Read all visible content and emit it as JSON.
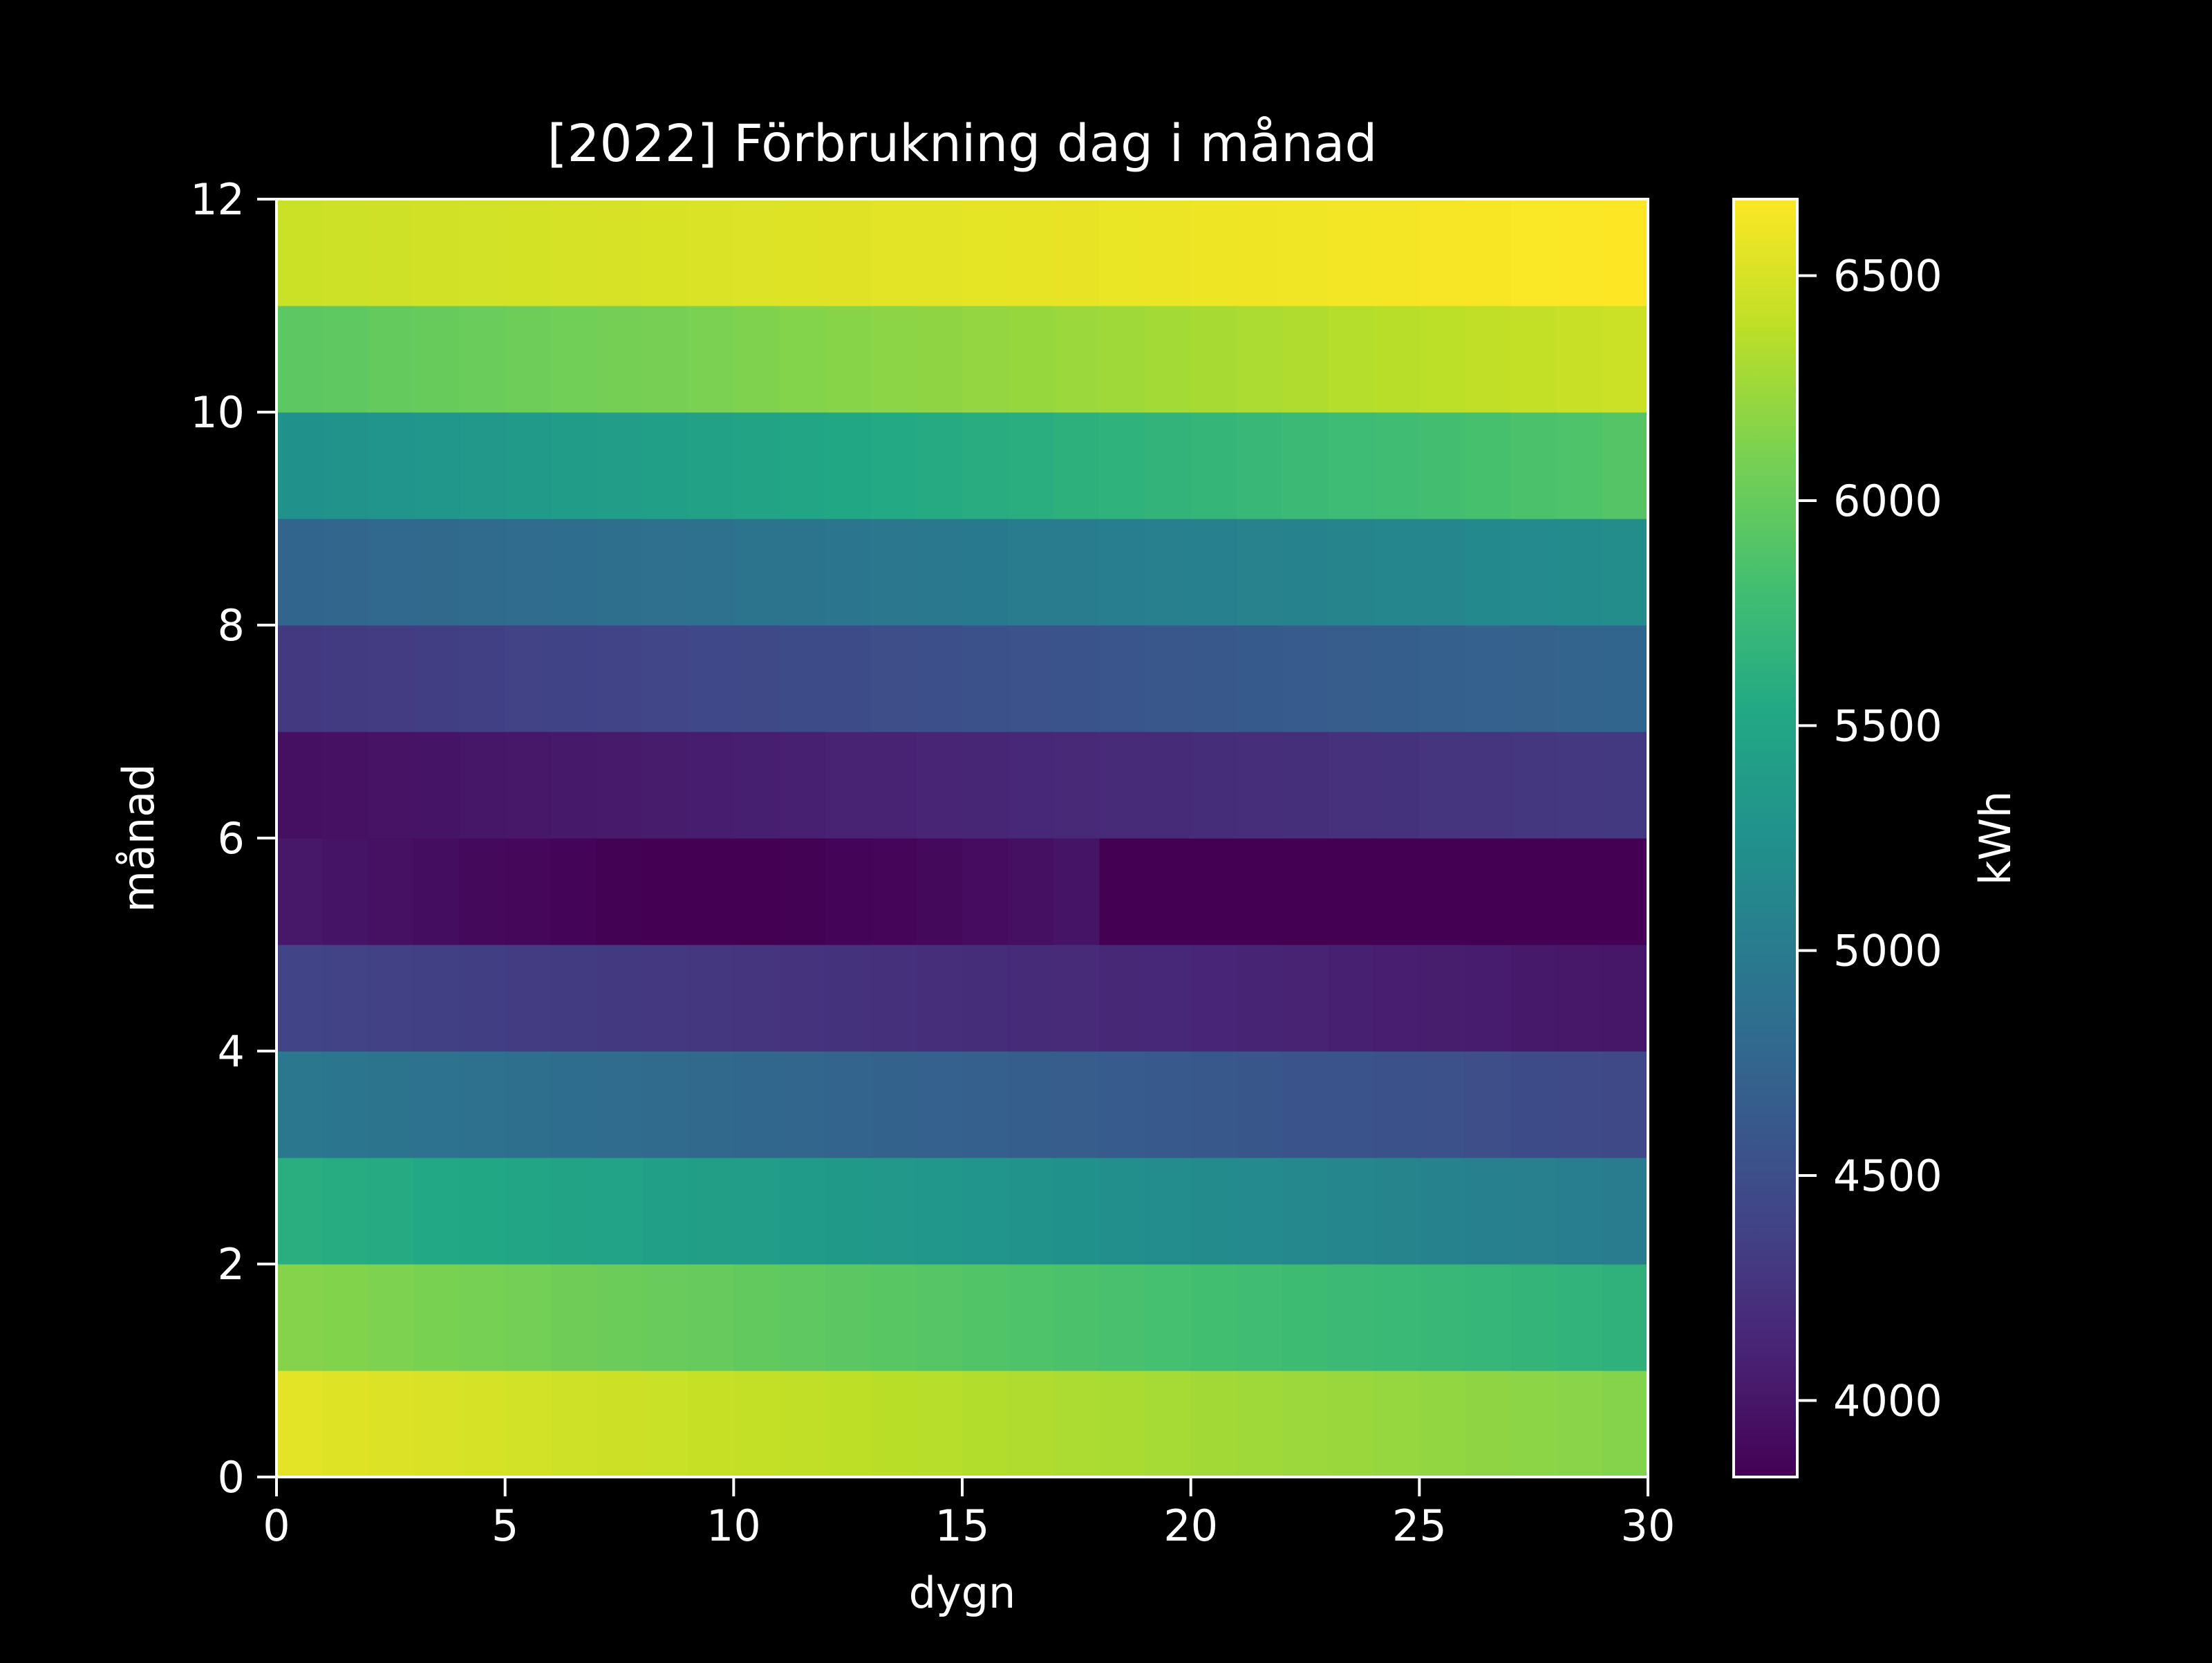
{
  "chart_data": {
    "type": "heatmap",
    "title": "[2022] Förbrukning dag i månad",
    "xlabel": "dygn",
    "ylabel": "månad",
    "xlim": [
      0,
      30
    ],
    "ylim": [
      0,
      12
    ],
    "x_ticks": [
      "0",
      "5",
      "10",
      "15",
      "20",
      "25",
      "30"
    ],
    "y_ticks": [
      "0",
      "2",
      "4",
      "6",
      "8",
      "10",
      "12"
    ],
    "colormap": "viridis",
    "colorbar": {
      "label": "kWh",
      "range": [
        3830,
        6670
      ],
      "ticks": [
        "4000",
        "4500",
        "5000",
        "5500",
        "6000",
        "6500"
      ]
    },
    "cols": 30,
    "rows": [
      {
        "month_index": 0,
        "start": 6550,
        "end": 6150
      },
      {
        "month_index": 1,
        "start": 6150,
        "end": 5650
      },
      {
        "month_index": 2,
        "start": 5600,
        "end": 5000
      },
      {
        "month_index": 3,
        "start": 4950,
        "end": 4450
      },
      {
        "month_index": 4,
        "start": 4400,
        "end": 4000
      },
      {
        "month_index": 5,
        "start": 4020,
        "end": 3830
      },
      {
        "month_index": 6,
        "start": 3950,
        "end": 4300
      },
      {
        "month_index": 7,
        "start": 4300,
        "end": 4750
      },
      {
        "month_index": 8,
        "start": 4750,
        "end": 5200
      },
      {
        "month_index": 9,
        "start": 5250,
        "end": 5900
      },
      {
        "month_index": 10,
        "start": 5950,
        "end": 6450
      },
      {
        "month_index": 11,
        "start": 6450,
        "end": 6670
      }
    ],
    "row_shapes": [
      "linear",
      "linear",
      "linear",
      "linear",
      "linear",
      "dip",
      "linear",
      "linear",
      "linear",
      "linear",
      "linear",
      "linear"
    ],
    "grid": false,
    "legend": "none"
  }
}
